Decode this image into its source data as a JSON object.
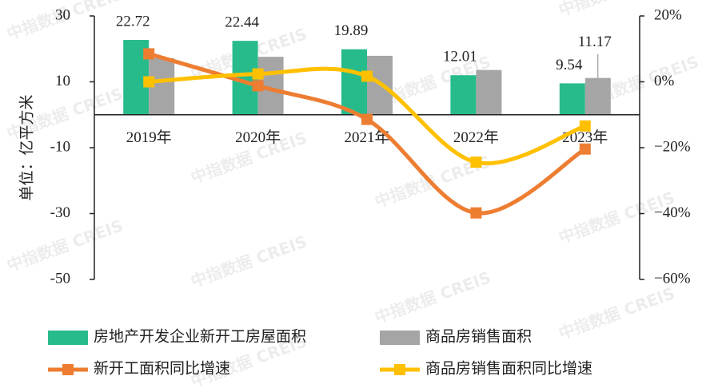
{
  "chart_data": {
    "type": "bar",
    "y_label": "单位：亿平方米",
    "watermark": "中指数据 CREIS",
    "categories": [
      "2019年",
      "2020年",
      "2021年",
      "2022年",
      "2023年"
    ],
    "ylim": [
      -50,
      30
    ],
    "yticks": [
      30,
      10,
      -10,
      -30,
      -50
    ],
    "y2lim": [
      -60,
      20
    ],
    "y2ticks": [
      {
        "value": 20,
        "label": "20%"
      },
      {
        "value": 0,
        "label": "0%"
      },
      {
        "value": -20,
        "label": "−20%"
      },
      {
        "value": -40,
        "label": "−40%"
      },
      {
        "value": -60,
        "label": "−60%"
      }
    ],
    "series": [
      {
        "name": "房地产开发企业新开工房屋面积",
        "type": "bar",
        "color": "#27bb8c",
        "values": [
          22.72,
          22.44,
          19.89,
          12.01,
          9.54
        ]
      },
      {
        "name": "商品房销售面积",
        "type": "bar",
        "color": "#a5a5a5",
        "values": [
          17.2,
          17.6,
          17.9,
          13.6,
          11.17
        ],
        "value_labels": [
          null,
          null,
          null,
          null,
          "11.17"
        ]
      },
      {
        "name": "新开工面积同比增速",
        "type": "line",
        "axis": "y2",
        "color": "#ed7d31",
        "values": [
          8.5,
          -1.2,
          -11.4,
          -39.8,
          -20.4
        ]
      },
      {
        "name": "商品房销售面积同比增速",
        "type": "line",
        "axis": "y2",
        "color": "#ffc000",
        "values": [
          0,
          2.4,
          1.7,
          -24.4,
          -13.4
        ]
      }
    ]
  }
}
